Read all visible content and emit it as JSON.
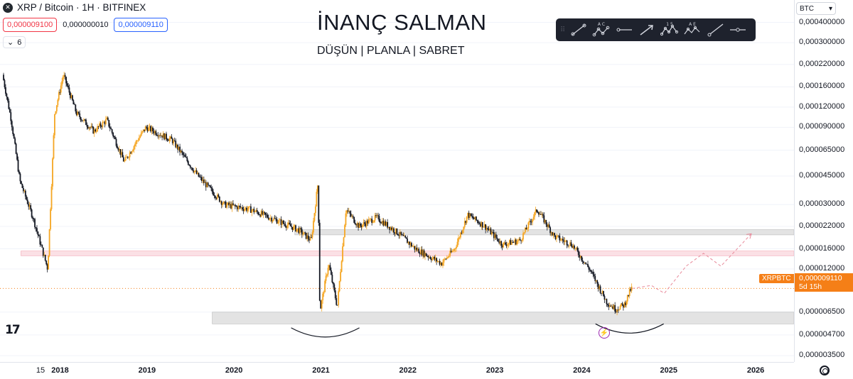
{
  "header": {
    "symbol_title": "XRP / Bitcoin · 1H · BITFINEX",
    "logo_glyph": "✕",
    "bid": "0,000009100",
    "spread": "0,000000010",
    "ask": "0,000009110",
    "indicators_count": "6"
  },
  "annotation": {
    "title": "İNANÇ SALMAN",
    "subtitle": "DÜŞÜN |  PLANLA |  SABRET"
  },
  "toolbar": {
    "tools": [
      "trend-line-tool",
      "abc-pattern-tool",
      "horizontal-ray-tool",
      "arrow-tool",
      "elliott-impulse-tool",
      "elliott-correction-tool",
      "ray-tool",
      "horizontal-line-tool"
    ],
    "tool_labels": [
      "",
      "A C",
      "",
      "",
      "1 5",
      "A E",
      "",
      ""
    ]
  },
  "price_scale": {
    "currency": "BTC",
    "ticks": [
      "0,000400000",
      "0,000300000",
      "0,000220000",
      "0,000160000",
      "0,000120000",
      "0,000090000",
      "0,000065000",
      "0,000045000",
      "0,000030000",
      "0,000022000",
      "0,000016000",
      "0,000012000",
      "0,000006500",
      "0,000004700",
      "0,000003500"
    ],
    "current_price": "0,000009110",
    "countdown": "5d 15h",
    "symbol_label": "XRPBTC"
  },
  "time_axis": {
    "ticks": [
      "15",
      "2018",
      "2019",
      "2020",
      "2021",
      "2022",
      "2023",
      "2024",
      "2025",
      "2026"
    ]
  },
  "footer": {
    "logo": "17"
  },
  "colors": {
    "up": "#f5a623",
    "down": "#131722",
    "last_price": "#f57f17",
    "support_zone": "#d9d9d9",
    "resistance_zone_red": "#f9d6dc"
  },
  "chart_data": {
    "type": "candlestick",
    "y_scale": "log",
    "ylim": [
      3.2e-06,
      0.00055
    ],
    "xlim": [
      2017.35,
      2026.4
    ],
    "current_price": 9.11e-06,
    "price_path": [
      {
        "x": 2017.35,
        "y": 0.00019
      },
      {
        "x": 2017.45,
        "y": 0.0001
      },
      {
        "x": 2017.55,
        "y": 4.2e-05
      },
      {
        "x": 2017.7,
        "y": 2.5e-05
      },
      {
        "x": 2017.87,
        "y": 1.2e-05
      },
      {
        "x": 2017.95,
        "y": 0.00011
      },
      {
        "x": 2018.05,
        "y": 0.00019
      },
      {
        "x": 2018.2,
        "y": 0.00011
      },
      {
        "x": 2018.4,
        "y": 8.5e-05
      },
      {
        "x": 2018.55,
        "y": 0.0001
      },
      {
        "x": 2018.75,
        "y": 5.5e-05
      },
      {
        "x": 2018.9,
        "y": 7.5e-05
      },
      {
        "x": 2019.0,
        "y": 9e-05
      },
      {
        "x": 2019.3,
        "y": 7.5e-05
      },
      {
        "x": 2019.6,
        "y": 4.5e-05
      },
      {
        "x": 2019.9,
        "y": 3e-05
      },
      {
        "x": 2020.2,
        "y": 2.8e-05
      },
      {
        "x": 2020.5,
        "y": 2.4e-05
      },
      {
        "x": 2020.75,
        "y": 2.1e-05
      },
      {
        "x": 2020.9,
        "y": 1.8e-05
      },
      {
        "x": 2020.98,
        "y": 4.2e-05
      },
      {
        "x": 2021.0,
        "y": 6.5e-06
      },
      {
        "x": 2021.1,
        "y": 1.3e-05
      },
      {
        "x": 2021.2,
        "y": 7e-06
      },
      {
        "x": 2021.3,
        "y": 2.8e-05
      },
      {
        "x": 2021.45,
        "y": 2.2e-05
      },
      {
        "x": 2021.65,
        "y": 2.5e-05
      },
      {
        "x": 2021.9,
        "y": 2e-05
      },
      {
        "x": 2022.1,
        "y": 1.6e-05
      },
      {
        "x": 2022.4,
        "y": 1.3e-05
      },
      {
        "x": 2022.55,
        "y": 1.6e-05
      },
      {
        "x": 2022.7,
        "y": 2.6e-05
      },
      {
        "x": 2022.9,
        "y": 2.2e-05
      },
      {
        "x": 2023.1,
        "y": 1.7e-05
      },
      {
        "x": 2023.3,
        "y": 1.8e-05
      },
      {
        "x": 2023.5,
        "y": 2.8e-05
      },
      {
        "x": 2023.7,
        "y": 1.9e-05
      },
      {
        "x": 2023.9,
        "y": 1.7e-05
      },
      {
        "x": 2024.1,
        "y": 1.2e-05
      },
      {
        "x": 2024.3,
        "y": 7.5e-06
      },
      {
        "x": 2024.4,
        "y": 6.8e-06
      },
      {
        "x": 2024.5,
        "y": 7.2e-06
      },
      {
        "x": 2024.58,
        "y": 9.1e-06
      }
    ],
    "zones": [
      {
        "name": "support",
        "from": 5.5e-06,
        "to": 6.5e-06,
        "x_start": 2019.75
      },
      {
        "name": "resistance-red",
        "from": 1.45e-05,
        "to": 1.55e-05,
        "x_start": 2017.55
      },
      {
        "name": "resistance-grey",
        "from": 1.95e-05,
        "to": 2.1e-05,
        "x_start": 2020.7
      }
    ],
    "projection": [
      {
        "x": 2024.58,
        "y": 9.1e-06
      },
      {
        "x": 2024.8,
        "y": 9.5e-06
      },
      {
        "x": 2024.95,
        "y": 8.5e-06
      },
      {
        "x": 2025.2,
        "y": 1.25e-05
      },
      {
        "x": 2025.4,
        "y": 1.5e-05
      },
      {
        "x": 2025.6,
        "y": 1.25e-05
      },
      {
        "x": 2025.95,
        "y": 1.98e-05
      }
    ],
    "bottom_arcs": [
      {
        "x_center": 2021.05,
        "y": 5.2e-06
      },
      {
        "x_center": 2024.55,
        "y": 5.5e-06
      }
    ]
  }
}
